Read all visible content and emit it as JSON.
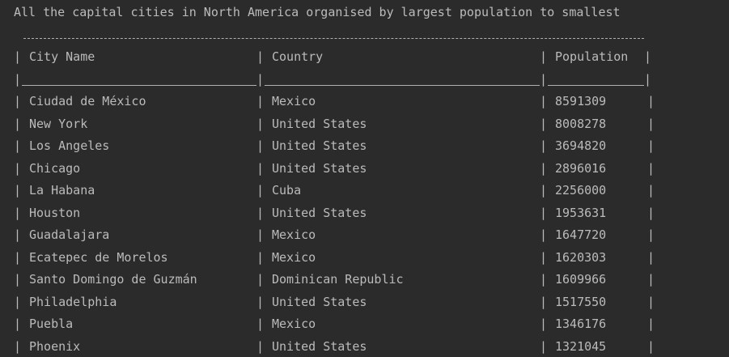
{
  "console": {
    "title": "All the capital cities in North America organised by largest population to smallest",
    "separator": "|",
    "headers": [
      "City Name",
      "Country",
      "Population"
    ],
    "rows": [
      [
        "Ciudad de México",
        "Mexico",
        "8591309"
      ],
      [
        "New York",
        "United States",
        "8008278"
      ],
      [
        "Los Angeles",
        "United States",
        "3694820"
      ],
      [
        "Chicago",
        "United States",
        "2896016"
      ],
      [
        "La Habana",
        "Cuba",
        "2256000"
      ],
      [
        "Houston",
        "United States",
        "1953631"
      ],
      [
        "Guadalajara",
        "Mexico",
        "1647720"
      ],
      [
        "Ecatepec de Morelos",
        "Mexico",
        "1620303"
      ],
      [
        "Santo Domingo de Guzmán",
        "Dominican Republic",
        "1609966"
      ],
      [
        "Philadelphia",
        "United States",
        "1517550"
      ],
      [
        "Puebla",
        "Mexico",
        "1346176"
      ],
      [
        "Phoenix",
        "United States",
        "1321045"
      ]
    ]
  }
}
